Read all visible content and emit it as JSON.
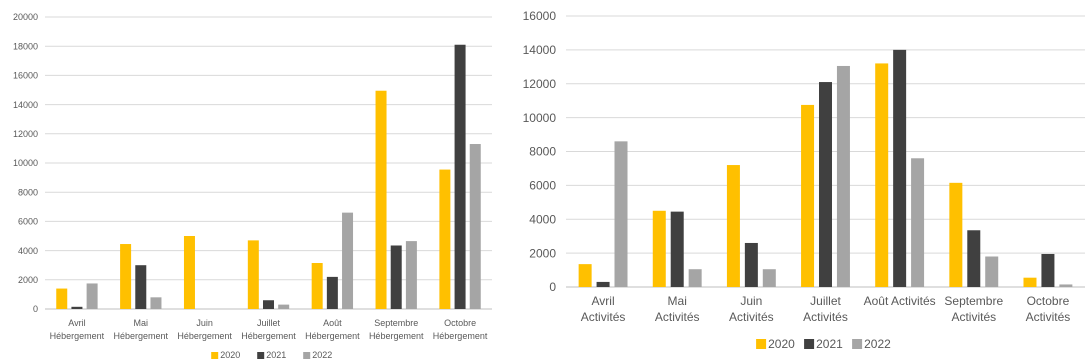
{
  "chart_data": [
    {
      "type": "bar",
      "title": "",
      "xlabel": "",
      "ylabel": "",
      "ylim": [
        0,
        20000
      ],
      "yticks": [
        0,
        2000,
        4000,
        6000,
        8000,
        10000,
        12000,
        14000,
        16000,
        18000,
        20000
      ],
      "grid": true,
      "legend": "bottom",
      "categories": [
        [
          "Avril",
          "Hébergement"
        ],
        [
          "Mai",
          "Hébergement"
        ],
        [
          "Juin",
          "Hébergement"
        ],
        [
          "Juillet",
          "Hébergement"
        ],
        [
          "Août",
          "Hébergement"
        ],
        [
          "Septembre",
          "Hébergement"
        ],
        [
          "Octobre",
          "Hébergement"
        ]
      ],
      "series": [
        {
          "name": "2020",
          "color": "#FFC000",
          "values": [
            1400,
            4450,
            5000,
            4700,
            3150,
            14950,
            9550
          ]
        },
        {
          "name": "2021",
          "color": "#404040",
          "values": [
            150,
            3000,
            0,
            600,
            2200,
            4350,
            18100
          ]
        },
        {
          "name": "2022",
          "color": "#A5A5A5",
          "values": [
            1750,
            800,
            0,
            300,
            6600,
            4650,
            11300
          ]
        }
      ]
    },
    {
      "type": "bar",
      "title": "",
      "xlabel": "",
      "ylabel": "",
      "ylim": [
        0,
        16000
      ],
      "yticks": [
        0,
        2000,
        4000,
        6000,
        8000,
        10000,
        12000,
        14000,
        16000
      ],
      "grid": true,
      "legend": "bottom",
      "categories": [
        [
          "Avril",
          "Activités"
        ],
        [
          "Mai",
          "Activités"
        ],
        [
          "Juin",
          "Activités"
        ],
        [
          "Juillet",
          "Activités"
        ],
        [
          "Août Activités"
        ],
        [
          "Septembre",
          "Activités"
        ],
        [
          "Octobre",
          "Activités"
        ]
      ],
      "series": [
        {
          "name": "2020",
          "color": "#FFC000",
          "values": [
            1350,
            4500,
            7200,
            10750,
            13200,
            6150,
            550
          ]
        },
        {
          "name": "2021",
          "color": "#404040",
          "values": [
            300,
            4450,
            2600,
            12100,
            14000,
            3350,
            1950
          ]
        },
        {
          "name": "2022",
          "color": "#A5A5A5",
          "values": [
            8600,
            1050,
            1050,
            13050,
            7600,
            1800,
            150
          ]
        }
      ]
    }
  ]
}
